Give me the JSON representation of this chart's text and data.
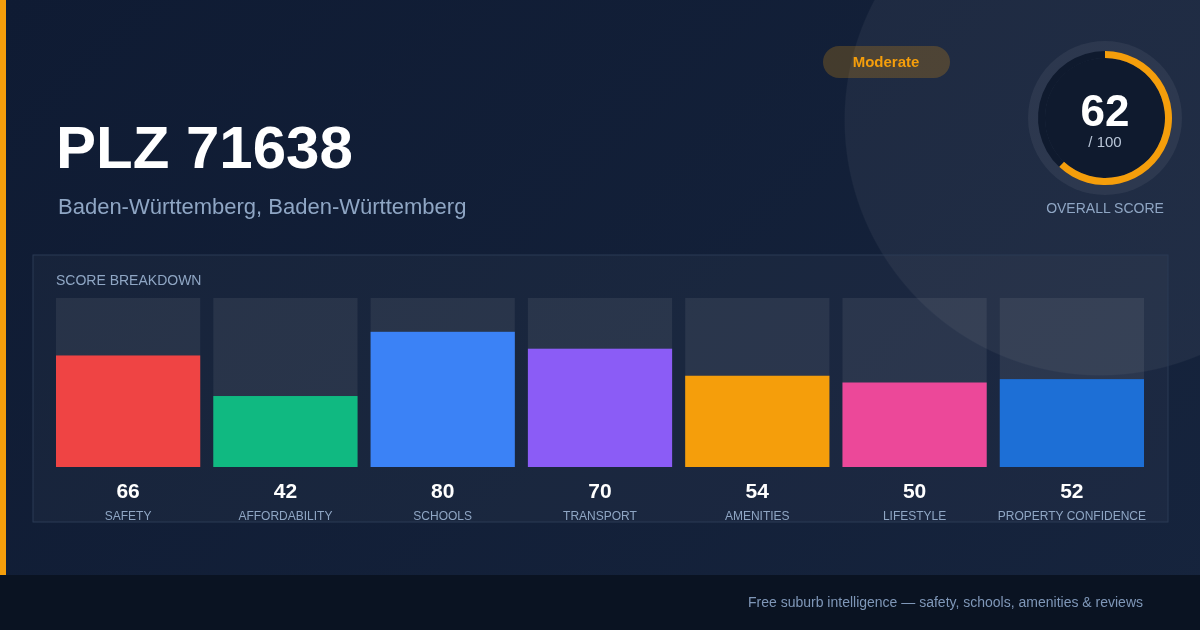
{
  "chart_data": [
    {
      "type": "bar",
      "title": "PLZ 71638",
      "subtitle": "Baden-Württemberg, Baden-Württemberg",
      "categories": [
        "SAFETY",
        "AFFORDABILITY",
        "SCHOOLS",
        "TRANSPORT",
        "AMENITIES",
        "LIFESTYLE",
        "PROPERTY CONFIDENCE"
      ],
      "values": [
        66,
        42,
        80,
        70,
        54,
        50,
        52
      ],
      "colors": [
        "#ef4444",
        "#10b981",
        "#3b82f6",
        "#8b5cf6",
        "#f59e0b",
        "#ec4899",
        "#1d6fd6"
      ],
      "ylim": [
        0,
        100
      ],
      "data_labels": true,
      "annotations": [
        "SCORE BREAKDOWN",
        "Free suburb intelligence — safety, schools, amenities & reviews"
      ]
    },
    {
      "type": "donut",
      "title": "OVERALL SCORE",
      "categories": [
        null,
        null
      ],
      "values": [
        62,
        38
      ],
      "colors": [
        "#f59e0b",
        "#0f1a2e"
      ],
      "value_labels": [
        "62",
        null
      ],
      "annotations": [
        "/ 100",
        "Moderate"
      ]
    }
  ]
}
